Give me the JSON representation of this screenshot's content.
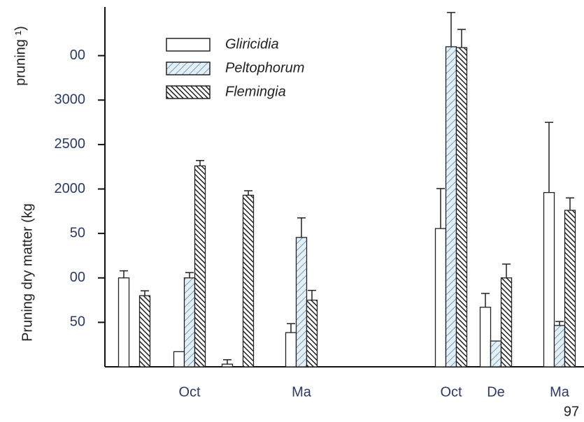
{
  "chart_data": {
    "type": "bar",
    "y_label": "Pruning dry matter (kg",
    "y_label_top": "pruning ¹)",
    "annotation": "97",
    "categories": [
      null,
      "Oct",
      null,
      "Ma",
      "Oct",
      "De",
      "Ma"
    ],
    "series": [
      {
        "name": "Gliricidia",
        "color": "#ffffff",
        "values": [
          1000,
          170,
          30,
          385,
          1555,
          670,
          1960
        ],
        "errors": [
          80,
          null,
          50,
          100,
          450,
          155,
          790
        ]
      },
      {
        "name": "Peltophorum",
        "color": "#9ec3dd",
        "values": [
          null,
          1000,
          null,
          1455,
          3600,
          290,
          465
        ],
        "errors": [
          null,
          60,
          null,
          220,
          385,
          null,
          45
        ]
      },
      {
        "name": "Flemingia",
        "color": "#333333",
        "values": [
          800,
          2260,
          1930,
          750,
          3590,
          1000,
          1760
        ],
        "errors": [
          55,
          60,
          50,
          110,
          205,
          155,
          140
        ]
      }
    ],
    "ylim": [
      0,
      4000
    ],
    "yticks": [
      {
        "value": 500,
        "label": "50"
      },
      {
        "value": 1000,
        "label": "00"
      },
      {
        "value": 1500,
        "label": "50"
      },
      2000,
      2500,
      3000,
      {
        "value": 3500,
        "label": "00"
      }
    ]
  }
}
